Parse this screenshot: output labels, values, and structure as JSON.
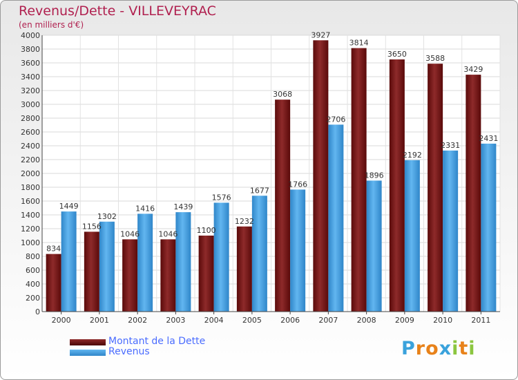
{
  "chart_data": {
    "type": "bar",
    "title": "Revenus/Dette - VILLEVEYRAC",
    "subtitle": "(en milliers d'€)",
    "categories": [
      "2000",
      "2001",
      "2002",
      "2003",
      "2004",
      "2005",
      "2006",
      "2007",
      "2008",
      "2009",
      "2010",
      "2011"
    ],
    "series": [
      {
        "name": "Montant de la Dette",
        "color": "#7a1515",
        "values": [
          834,
          1156,
          1046,
          1046,
          1100,
          1232,
          3068,
          3927,
          3814,
          3650,
          3588,
          3429
        ]
      },
      {
        "name": "Revenus",
        "color": "#4aa3e6",
        "values": [
          1449,
          1302,
          1416,
          1439,
          1576,
          1677,
          1766,
          2706,
          1896,
          2192,
          2331,
          2431
        ]
      }
    ],
    "ylim": [
      0,
      4000
    ],
    "yticks": [
      0,
      200,
      400,
      600,
      800,
      1000,
      1200,
      1400,
      1600,
      1800,
      2000,
      2200,
      2400,
      2600,
      2800,
      3000,
      3200,
      3400,
      3600,
      3800,
      4000
    ],
    "grid": true,
    "legend": "bottom-left"
  },
  "logo": {
    "letters": [
      "P",
      "r",
      "o",
      "x",
      "i",
      "t",
      "i"
    ],
    "colors": [
      "#3aa2dc",
      "#e8821a",
      "#e8821a",
      "#3aa2dc",
      "#8cc640",
      "#e8821a",
      "#8cc640"
    ]
  }
}
